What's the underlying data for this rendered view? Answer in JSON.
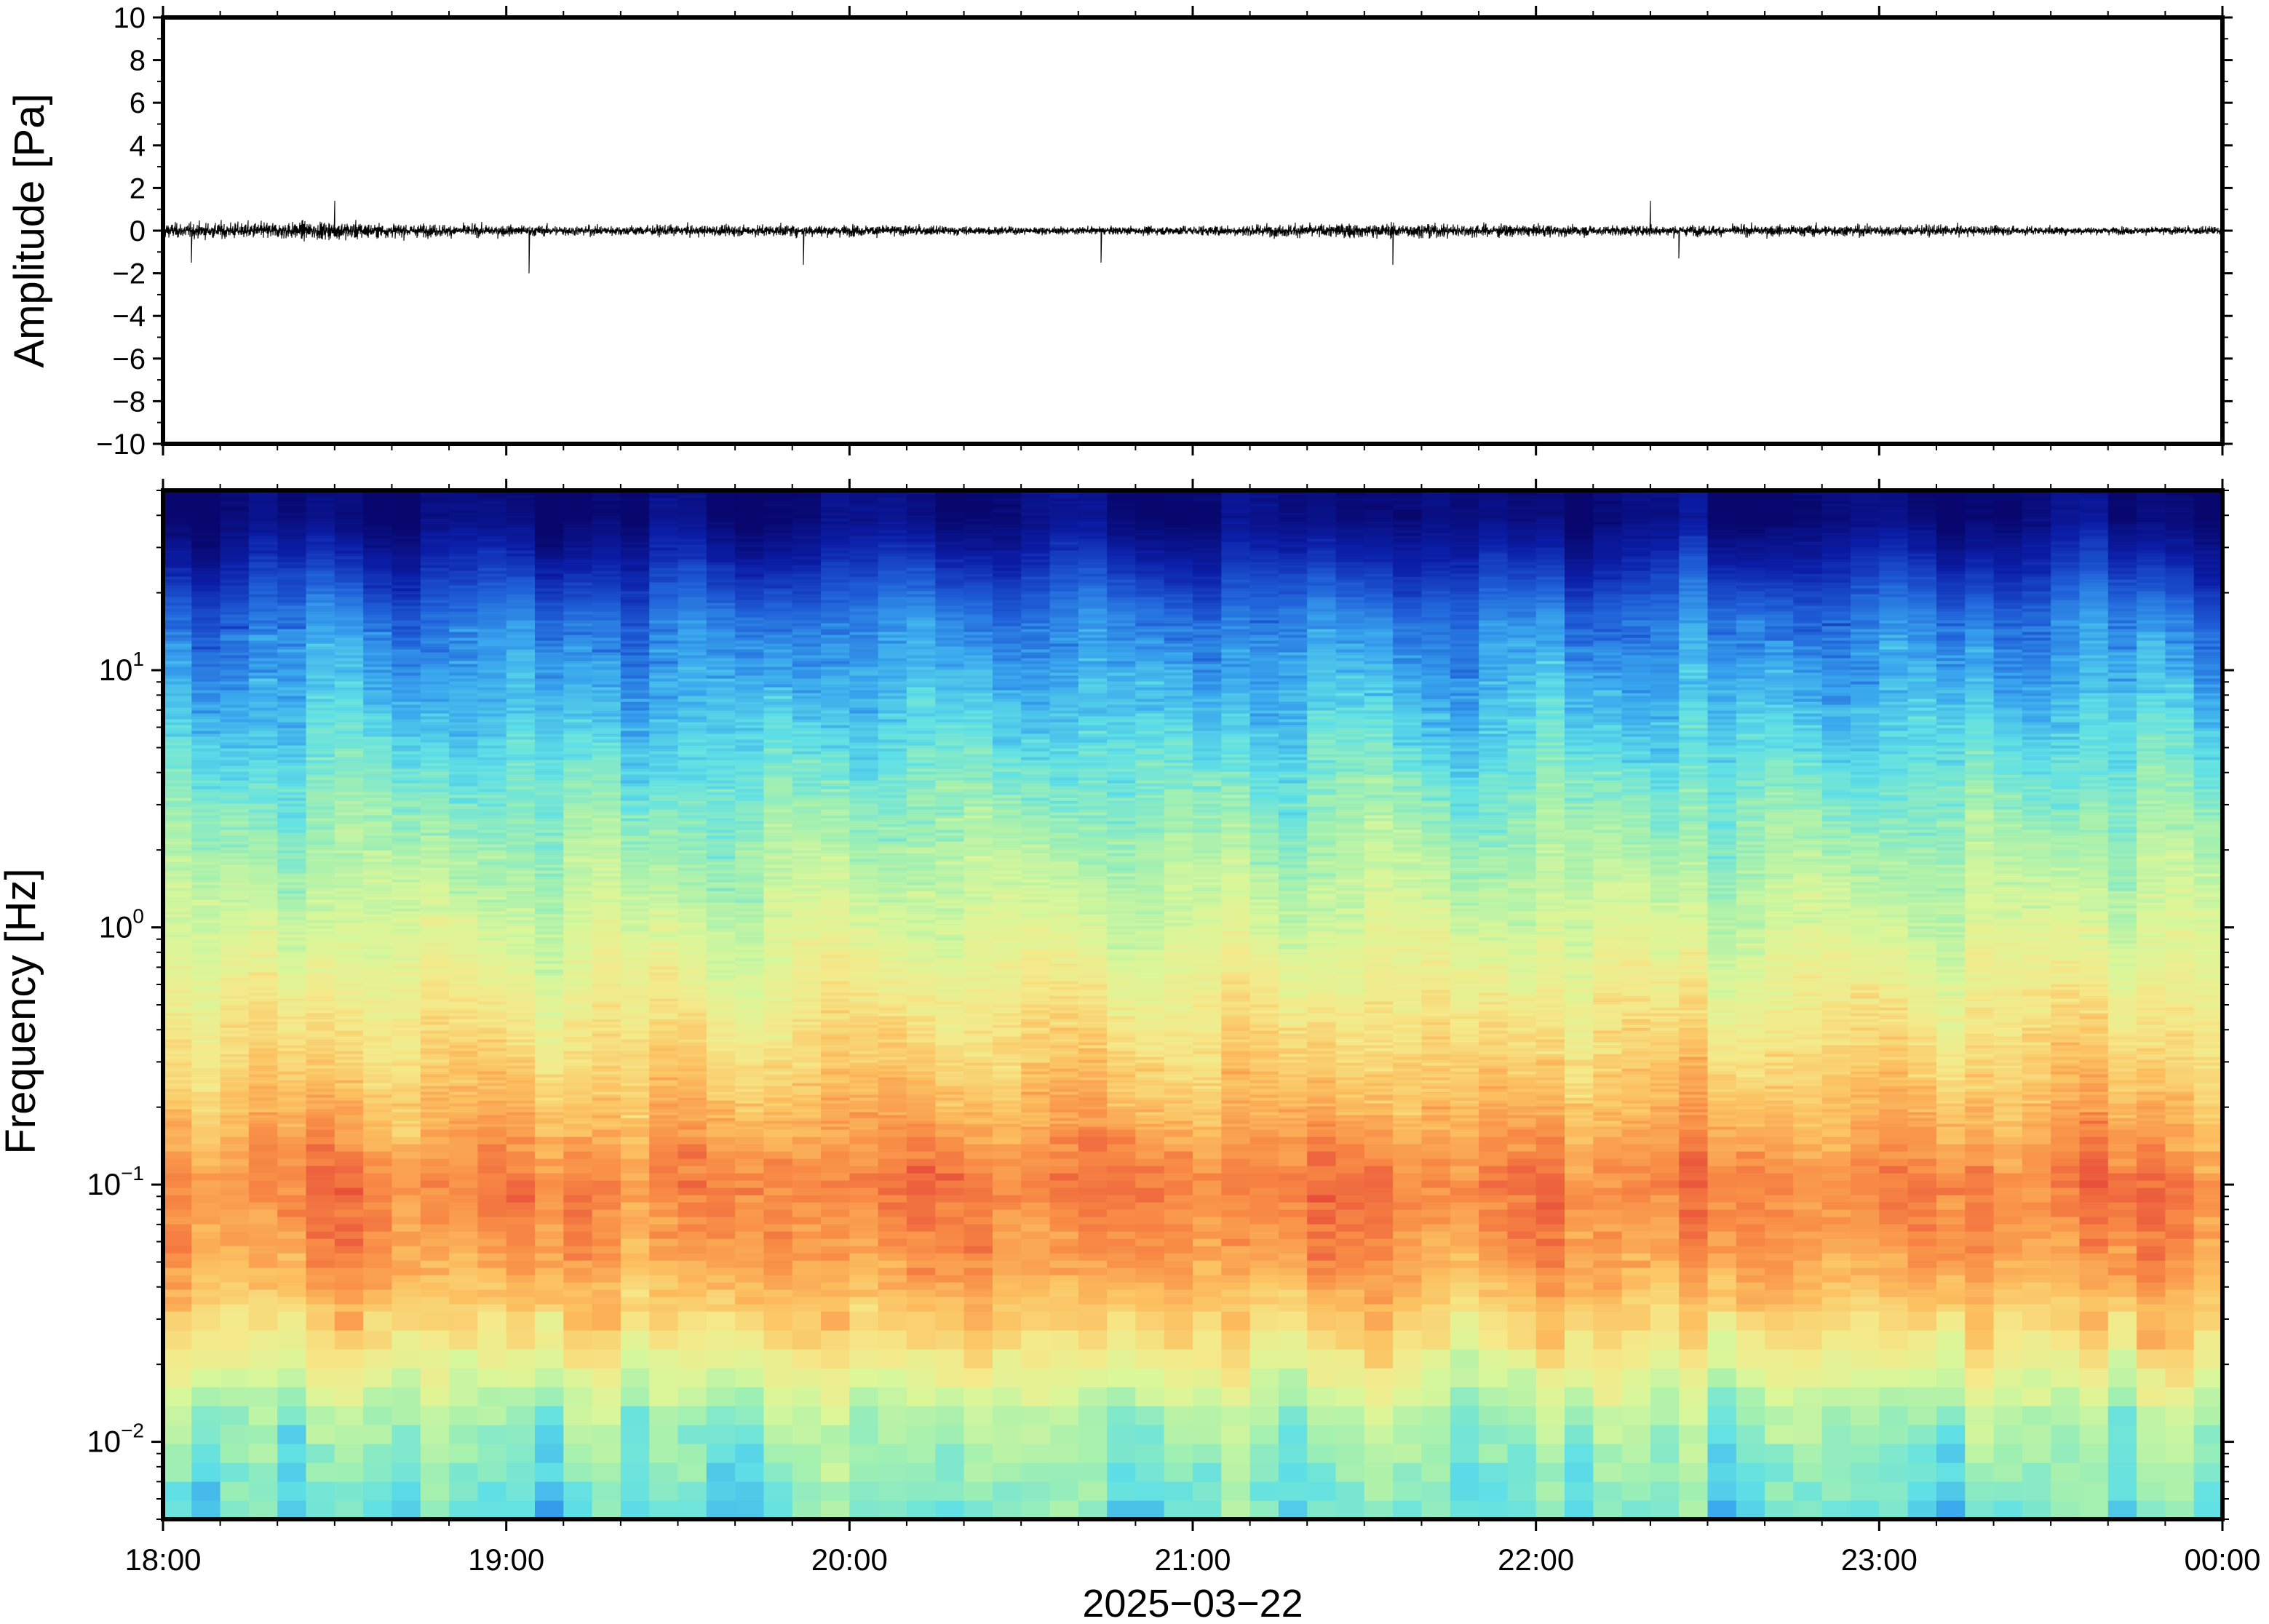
{
  "chart_data": [
    {
      "type": "line",
      "panel": "waveform",
      "ylabel": "Amplitude [Pa]",
      "ylim": [
        -10,
        10
      ],
      "yticks": [
        10,
        8,
        6,
        4,
        2,
        0,
        -2,
        -4,
        -6,
        -8,
        -10
      ],
      "ytick_labels": [
        "10",
        "8",
        "6",
        "4",
        "2",
        "0",
        "−2",
        "−4",
        "−6",
        "−8",
        "−10"
      ],
      "x_range_hours": [
        18,
        24
      ],
      "series": [
        {
          "values_description_hint": "",
          "baseline": 0,
          "typical_envelope": 0.4,
          "max_abs_amplitude": 2.0,
          "spikes": [
            {
              "time": "18:05",
              "value": -1.5
            },
            {
              "time": "18:30",
              "value": 1.4
            },
            {
              "time": "19:04",
              "value": -2.0
            },
            {
              "time": "19:52",
              "value": -1.6
            },
            {
              "time": "20:44",
              "value": -1.5
            },
            {
              "time": "21:35",
              "value": -1.6
            },
            {
              "time": "22:20",
              "value": 1.4
            },
            {
              "time": "22:25",
              "value": -1.3
            }
          ]
        }
      ],
      "color": "#000000"
    },
    {
      "type": "heatmap",
      "panel": "spectrogram",
      "ylabel": "Frequency [Hz]",
      "yscale": "log",
      "ylim": [
        0.005,
        50
      ],
      "yticks": [
        0.01,
        0.1,
        1,
        10
      ],
      "ytick_labels": [
        {
          "base": "10",
          "exp": "−2"
        },
        {
          "base": "10",
          "exp": "−1"
        },
        {
          "base": "10",
          "exp": "0"
        },
        {
          "base": "10",
          "exp": "1"
        }
      ],
      "xticks": [
        "18:00",
        "19:00",
        "20:00",
        "21:00",
        "22:00",
        "23:00",
        "00:00"
      ],
      "xlabel": "2025−03−22",
      "colormap": [
        "#08076e",
        "#0b1ea8",
        "#1f5fd8",
        "#39a6ee",
        "#5fe0e6",
        "#a3f0b0",
        "#d9f79a",
        "#f5e98a",
        "#fcc060",
        "#f88a45",
        "#e8503a"
      ],
      "description_levels": {
        "above_30Hz": "dark navy",
        "10Hz": "blue to cyan",
        "1Hz": "yellow-green",
        "0.1Hz": "orange-red",
        "0.03Hz": "orange",
        "0.01Hz_and_below": "green to cyan"
      }
    }
  ]
}
